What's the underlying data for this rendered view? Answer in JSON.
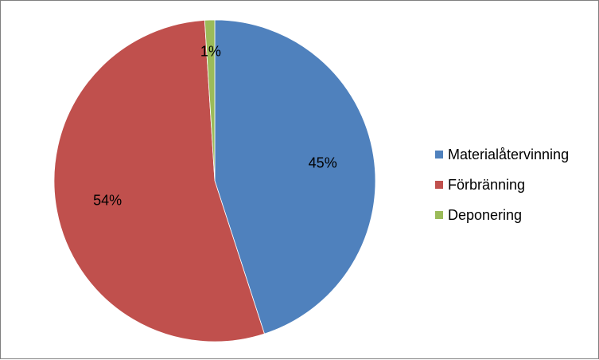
{
  "chart_data": {
    "type": "pie",
    "title": "",
    "start_angle_deg": 0,
    "direction": "clockwise",
    "slices": [
      {
        "label": "Materialåtervinning",
        "value": 45,
        "display": "45%",
        "color": "#4f81bd"
      },
      {
        "label": "Förbränning",
        "value": 54,
        "display": "54%",
        "color": "#c0504d"
      },
      {
        "label": "Deponering",
        "value": 1,
        "display": "1%",
        "color": "#9bbb59"
      }
    ],
    "legend_position": "right"
  }
}
